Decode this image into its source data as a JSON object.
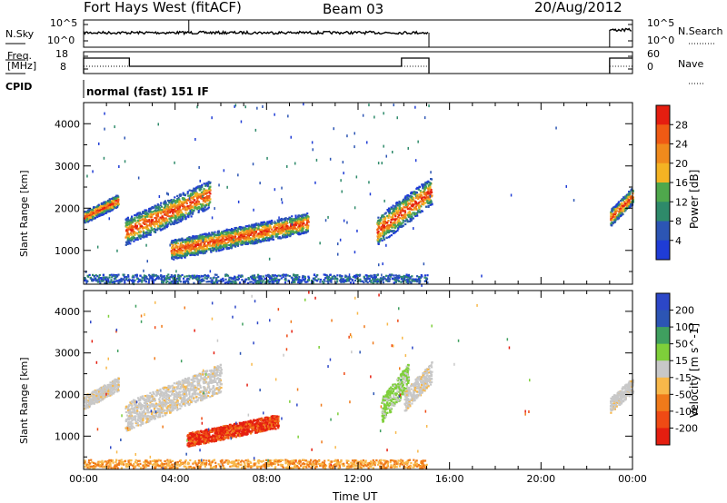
{
  "header": {
    "title": "Fort Hays West (fitACF)",
    "beam": "Beam 03",
    "date": "20/Aug/2012"
  },
  "panels": {
    "nsky": {
      "left_label": "N.Sky",
      "left_ticks": [
        "10^5",
        "10^0"
      ],
      "right_label": "N.Search",
      "right_ticks": [
        "10^5",
        "10^0"
      ]
    },
    "freq": {
      "left_label_1": "Freq.",
      "left_label_2": "[MHz]",
      "left_ticks": [
        "18",
        "8"
      ],
      "right_label": "Nave",
      "right_ticks": [
        "60",
        "0"
      ]
    },
    "cpid": {
      "label": "CPID",
      "value": "normal (fast) 151 IF"
    }
  },
  "colors": {
    "power": [
      "#1f3cd6",
      "#2c55b4",
      "#2e8a6a",
      "#4fa84c",
      "#f4b323",
      "#f08a1c",
      "#ef5a14",
      "#e51e10"
    ],
    "velocity": [
      "#e51e10",
      "#ef4a14",
      "#f07a1a",
      "#f8b84a",
      "#c8c8c8",
      "#7ecf3a",
      "#3f9f5f",
      "#2c55b4",
      "#2c47c8"
    ]
  },
  "chart_data": [
    {
      "type": "heatmap",
      "name": "power",
      "ylabel": "Slant Range [km]",
      "ylim": [
        200,
        4500
      ],
      "yticks": [
        "1000",
        "2000",
        "3000",
        "4000"
      ],
      "xlim": [
        0,
        24
      ],
      "colorbar": {
        "label": "Power [dB]",
        "ticks": [
          "4",
          "8",
          "12",
          "16",
          "20",
          "24",
          "28"
        ]
      },
      "features": [
        {
          "t_start": 0.0,
          "t_end": 1.5,
          "r_low": 1600,
          "r_high": 2400
        },
        {
          "t_start": 1.8,
          "t_end": 5.5,
          "r_low": 1000,
          "r_high": 2800
        },
        {
          "t_start": 3.8,
          "t_end": 9.8,
          "r_low": 700,
          "r_high": 2000
        },
        {
          "t_start": 12.8,
          "t_end": 15.2,
          "r_low": 1000,
          "r_high": 2900
        },
        {
          "t_start": 23.0,
          "t_end": 24.0,
          "r_low": 1500,
          "r_high": 2600
        },
        {
          "t_start": 0.0,
          "t_end": 15.0,
          "r_low": 250,
          "r_high": 450
        }
      ]
    },
    {
      "type": "heatmap",
      "name": "velocity",
      "ylabel": "Slant Range [km]",
      "ylim": [
        200,
        4500
      ],
      "yticks": [
        "1000",
        "2000",
        "3000",
        "4000"
      ],
      "xlim": [
        0,
        24
      ],
      "xticks": [
        "00:00",
        "04:00",
        "08:00",
        "12:00",
        "16:00",
        "20:00",
        "00:00"
      ],
      "xlabel": "Time UT",
      "colorbar": {
        "label": "Velocity [m s^-1]",
        "ticks": [
          "200",
          "100",
          "50",
          "15",
          "-15",
          "-50",
          "-100",
          "-200"
        ]
      },
      "features": [
        {
          "t_start": 0.0,
          "t_end": 1.5,
          "r_low": 1600,
          "r_high": 2500,
          "velocity": 0
        },
        {
          "t_start": 1.8,
          "t_end": 6.0,
          "r_low": 1000,
          "r_high": 2900,
          "velocity": 0
        },
        {
          "t_start": 4.5,
          "t_end": 8.5,
          "r_low": 700,
          "r_high": 1600,
          "velocity": -120
        },
        {
          "t_start": 13.0,
          "t_end": 14.2,
          "r_low": 1200,
          "r_high": 2900,
          "velocity": 40
        },
        {
          "t_start": 14.0,
          "t_end": 15.2,
          "r_low": 1500,
          "r_high": 2900,
          "velocity": 0
        },
        {
          "t_start": 23.0,
          "t_end": 24.0,
          "r_low": 1500,
          "r_high": 2500,
          "velocity": 0
        },
        {
          "t_start": 0.0,
          "t_end": 15.0,
          "r_low": 250,
          "r_high": 450,
          "velocity": -30
        }
      ]
    }
  ]
}
